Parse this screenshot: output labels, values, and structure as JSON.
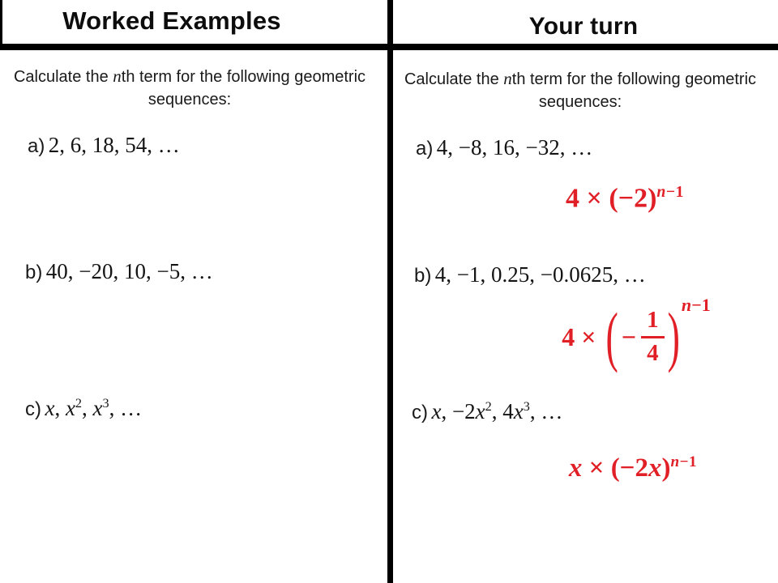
{
  "slide": {
    "colors": {
      "answer_red": "#e01f26",
      "divider_black": "#000000",
      "background": "#ffffff"
    },
    "left": {
      "header": "Worked Examples",
      "instruction": {
        "pre": "Calculate the ",
        "var": "n",
        "post": "th term for the following geometric sequences:"
      },
      "items": [
        {
          "label": "a)",
          "math": [
            {
              "t": "2, 6, 18, 54, …"
            }
          ]
        },
        {
          "label": "b)",
          "math": [
            {
              "t": "40, −20, 10, −5, …"
            }
          ]
        },
        {
          "label": "c)",
          "math": [
            {
              "t": "x",
              "i": true
            },
            {
              "t": ", "
            },
            {
              "t": "x",
              "i": true
            },
            {
              "t": "2",
              "sup": true
            },
            {
              "t": ", "
            },
            {
              "t": "x",
              "i": true
            },
            {
              "t": "3",
              "sup": true
            },
            {
              "t": ", …"
            }
          ]
        }
      ]
    },
    "right": {
      "header": "Your turn",
      "instruction": {
        "pre": "Calculate the ",
        "var": "n",
        "post": "th term for the following geometric sequences:"
      },
      "items": [
        {
          "label": "a)",
          "math": [
            {
              "t": "4, −8, 16, −32, …"
            }
          ]
        },
        {
          "label": "b)",
          "math": [
            {
              "t": "4, −1, 0.25, −0.0625, …"
            }
          ]
        },
        {
          "label": "c)",
          "math": [
            {
              "t": "x",
              "i": true
            },
            {
              "t": ", −2"
            },
            {
              "t": "x",
              "i": true
            },
            {
              "t": "2",
              "sup": true
            },
            {
              "t": ", 4"
            },
            {
              "t": "x",
              "i": true
            },
            {
              "t": "3",
              "sup": true
            },
            {
              "t": ", …"
            }
          ]
        }
      ],
      "answers": {
        "a": {
          "body": [
            {
              "t": "4 × (−2)"
            }
          ],
          "exp": [
            {
              "t": "n",
              "i": true
            },
            {
              "t": "−1"
            }
          ]
        },
        "b": {
          "lead": "4 ×",
          "open_paren": "(",
          "minus": "−",
          "numerator": "1",
          "denominator": "4",
          "close_paren": ")",
          "exp": [
            {
              "t": "n",
              "i": true
            },
            {
              "t": "−1"
            }
          ]
        },
        "c": {
          "body": [
            {
              "t": "x",
              "i": true
            },
            {
              "t": " × (−2"
            },
            {
              "t": "x",
              "i": true
            },
            {
              "t": ")"
            }
          ],
          "exp": [
            {
              "t": "n",
              "i": true
            },
            {
              "t": "−1"
            }
          ]
        }
      }
    }
  }
}
